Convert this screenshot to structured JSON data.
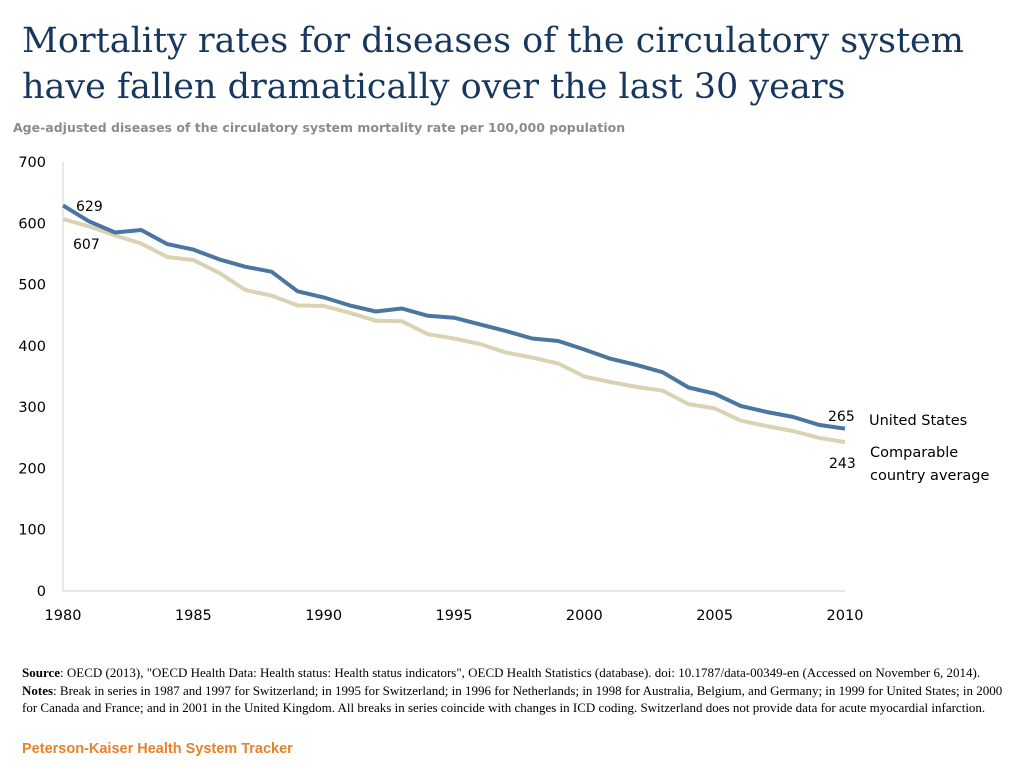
{
  "header": {
    "title": "Mortality rates for diseases of the circulatory system have fallen dramatically over the last 30 years",
    "subtitle": "Age-adjusted diseases of the circulatory system mortality rate per 100,000 population"
  },
  "chart_data": {
    "type": "line",
    "title": "Mortality rates for diseases of the circulatory system have fallen dramatically over the last 30 years",
    "ylabel": "Age-adjusted diseases of the circulatory system mortality rate per 100,000 population",
    "xlabel": "",
    "xlim": [
      1980,
      2010
    ],
    "ylim": [
      0,
      700
    ],
    "x_ticks": [
      "1980",
      "1985",
      "1990",
      "1995",
      "2000",
      "2005",
      "2010"
    ],
    "y_ticks": [
      "0",
      "100",
      "200",
      "300",
      "400",
      "500",
      "600",
      "700"
    ],
    "grid": false,
    "x": [
      1980,
      1981,
      1982,
      1983,
      1984,
      1985,
      1986,
      1987,
      1988,
      1989,
      1990,
      1991,
      1992,
      1993,
      1994,
      1995,
      1996,
      1997,
      1998,
      1999,
      2000,
      2001,
      2002,
      2003,
      2004,
      2005,
      2006,
      2007,
      2008,
      2009,
      2010
    ],
    "series": [
      {
        "name": "United States",
        "color": "#4a76a0",
        "values": [
          629,
          603,
          585,
          589,
          566,
          557,
          541,
          529,
          521,
          489,
          479,
          466,
          456,
          461,
          449,
          446,
          435,
          424,
          412,
          408,
          394,
          379,
          369,
          357,
          332,
          322,
          302,
          292,
          284,
          271,
          265
        ],
        "start_label": "629",
        "end_label": "265"
      },
      {
        "name": "Comparable country average",
        "color": "#d9d3b4",
        "values": [
          607,
          595,
          580,
          567,
          545,
          540,
          519,
          491,
          482,
          466,
          465,
          454,
          441,
          440,
          419,
          412,
          403,
          389,
          381,
          371,
          350,
          341,
          333,
          327,
          305,
          298,
          278,
          269,
          261,
          250,
          243
        ],
        "start_label": "607",
        "end_label": "243"
      }
    ],
    "legend": {
      "placement": "right",
      "us_label": "United States",
      "comp_label_line1": "Comparable",
      "comp_label_line2": "country average"
    }
  },
  "footer": {
    "source_label": "Source",
    "source_text": ": OECD (2013), \"OECD Health Data: Health status: Health status indicators\", OECD Health Statistics (database). doi: 10.1787/data-00349-en (Accessed on November 6, 2014).  ",
    "notes_label": "Notes",
    "notes_text": ": Break in series in 1987 and 1997 for Switzerland;  in 1995 for Switzerland; in 1996 for Netherlands; in 1998 for Australia, Belgium, and Germany; in 1999 for United States;  in 2000 for Canada and France; and in 2001 in the United Kingdom. All breaks in series coincide with  changes in ICD coding. Switzerland does not provide data for acute myocardial infarction.",
    "brand": "Peterson-Kaiser Health System Tracker"
  }
}
